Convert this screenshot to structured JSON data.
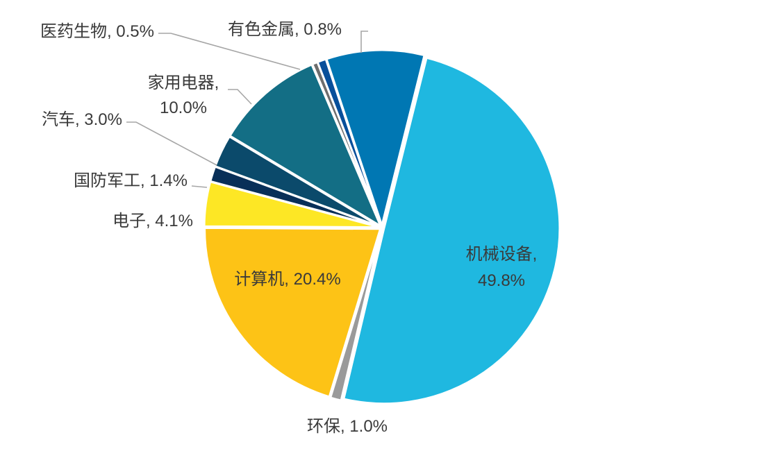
{
  "chart_data": {
    "type": "pie",
    "title": "",
    "legend": "none",
    "slices": [
      {
        "name": "机械设备",
        "value": 49.8,
        "label_lines": [
          "机械设备,",
          "49.8%"
        ],
        "color": "#1fb8e0"
      },
      {
        "name": "环保",
        "value": 1.0,
        "label_lines": [
          "环保, 1.0%"
        ],
        "color": "#9a9a9a"
      },
      {
        "name": "计算机",
        "value": 20.4,
        "label_lines": [
          "计算机, 20.4%"
        ],
        "color": "#fdc316"
      },
      {
        "name": "电子",
        "value": 4.1,
        "label_lines": [
          "电子, 4.1%"
        ],
        "color": "#fde725"
      },
      {
        "name": "国防军工",
        "value": 1.4,
        "label_lines": [
          "国防军工, 1.4%"
        ],
        "color": "#082f58"
      },
      {
        "name": "汽车",
        "value": 3.0,
        "label_lines": [
          "汽车, 3.0%"
        ],
        "color": "#0b4a6b"
      },
      {
        "name": "家用电器",
        "value": 10.0,
        "label_lines": [
          "家用电器,",
          "10.0%"
        ],
        "color": "#136e85"
      },
      {
        "name": "医药生物",
        "value": 0.5,
        "label_lines": [
          "医药生物, 0.5%"
        ],
        "color": "#6d6d6d"
      },
      {
        "name": "有色金属",
        "value": 0.8,
        "label_lines": [
          "有色金属, 0.8%"
        ],
        "color": "#084f9a"
      },
      {
        "name": "",
        "value": 9.0,
        "label_lines": [],
        "color": "#0077b3"
      }
    ]
  }
}
